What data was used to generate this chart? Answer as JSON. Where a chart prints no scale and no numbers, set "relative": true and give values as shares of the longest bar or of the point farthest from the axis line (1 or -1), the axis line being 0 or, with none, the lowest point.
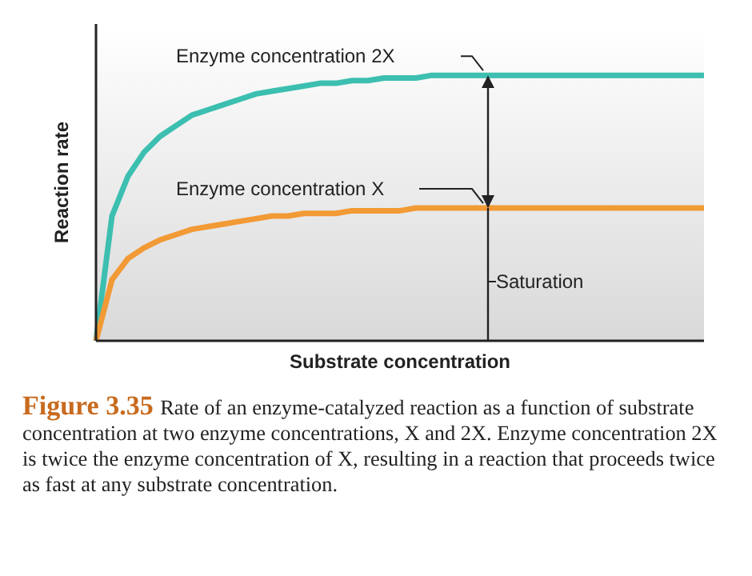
{
  "chart_data": {
    "type": "line",
    "relative": true,
    "title": "Figure 3.35",
    "xlabel": "Substrate concentration",
    "ylabel": "Reaction rate",
    "marker": "none",
    "categories": [
      null,
      null,
      null,
      null,
      null,
      null,
      null,
      null,
      null,
      null,
      null,
      null,
      null,
      null,
      null,
      null,
      null,
      null,
      null,
      null,
      null,
      null,
      null,
      null,
      null,
      null,
      null,
      null,
      null,
      null,
      null,
      null,
      null,
      null,
      null,
      null,
      null,
      null,
      null
    ],
    "series": [
      {
        "name": "Enzyme concentration 2X",
        "color": "#3cbfb0",
        "values": [
          0,
          0.47,
          0.62,
          0.71,
          0.77,
          0.81,
          0.85,
          0.87,
          0.89,
          0.91,
          0.93,
          0.94,
          0.95,
          0.96,
          0.97,
          0.97,
          0.98,
          0.98,
          0.99,
          0.99,
          0.99,
          1,
          1,
          1,
          1,
          1,
          1,
          1,
          1,
          1,
          1,
          1,
          1,
          1,
          1,
          1,
          1,
          1,
          1
        ]
      },
      {
        "name": "Enzyme concentration X",
        "color": "#f29a35",
        "values": [
          0,
          0.23,
          0.31,
          0.35,
          0.38,
          0.4,
          0.42,
          0.43,
          0.44,
          0.45,
          0.46,
          0.47,
          0.47,
          0.48,
          0.48,
          0.48,
          0.49,
          0.49,
          0.49,
          0.49,
          0.5,
          0.5,
          0.5,
          0.5,
          0.5,
          0.5,
          0.5,
          0.5,
          0.5,
          0.5,
          0.5,
          0.5,
          0.5,
          0.5,
          0.5,
          0.5,
          0.5,
          0.5,
          0.5
        ]
      }
    ],
    "annotations": [
      "Saturation",
      "Rate of an enzyme-catalyzed reaction as a function of substrate concentration at two enzyme concentrations, X and 2X. Enzyme concentration 2X is twice the enzyme concentration of X, resulting in a reaction that proceeds twice as fast at any substrate concentration."
    ]
  }
}
